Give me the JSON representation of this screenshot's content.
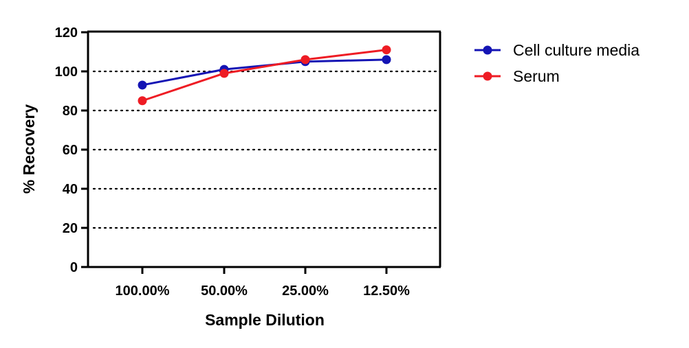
{
  "chart_data": {
    "type": "line",
    "title": "",
    "xlabel": "Sample Dilution",
    "ylabel": "% Recovery",
    "categories": [
      "100.00%",
      "50.00%",
      "25.00%",
      "12.50%"
    ],
    "ylim": [
      0,
      120
    ],
    "yticks": [
      0,
      20,
      40,
      60,
      80,
      100,
      120
    ],
    "grid": "horizontal dotted",
    "legend_position": "top-right outside",
    "series": [
      {
        "name": "Cell culture media",
        "color": "#1414b4",
        "values": [
          93,
          101,
          105,
          106
        ]
      },
      {
        "name": "Serum",
        "color": "#ee1c24",
        "values": [
          85,
          99,
          106,
          111
        ]
      }
    ]
  }
}
